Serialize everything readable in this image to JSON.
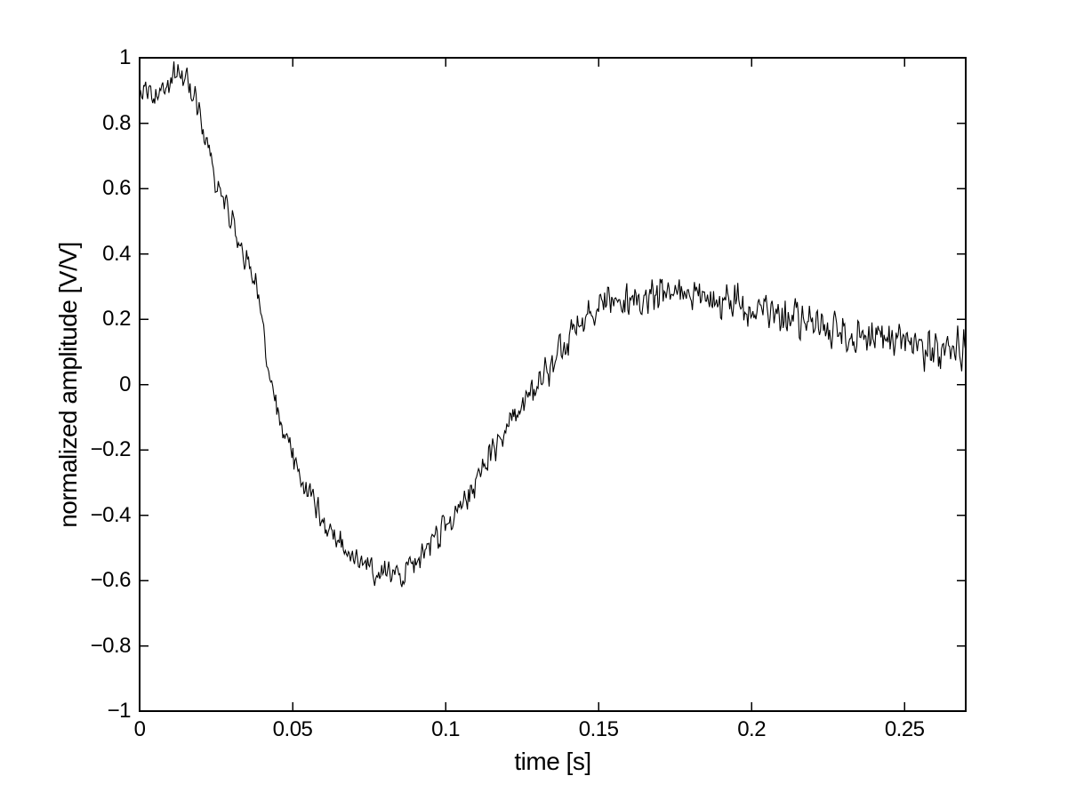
{
  "figure": {
    "background_color": "#ffffff",
    "title": ""
  },
  "chart_data": {
    "type": "line",
    "title": "",
    "xlabel": "time [s]",
    "ylabel": "normalized amplitude [V/V]",
    "xlim": [
      0,
      0.27
    ],
    "ylim": [
      -1,
      1
    ],
    "xticks": [
      0,
      0.05,
      0.1,
      0.15,
      0.2,
      0.25
    ],
    "xtick_labels": [
      "0",
      "0.05",
      "0.1",
      "0.15",
      "0.2",
      "0.25"
    ],
    "yticks": [
      1,
      0.8,
      0.6,
      0.4,
      0.2,
      0,
      -0.2,
      -0.4,
      -0.6,
      -0.8,
      -1
    ],
    "ytick_labels": [
      "1",
      "0.8",
      "0.6",
      "0.4",
      "0.2",
      "0",
      "−0.2",
      "−0.4",
      "−0.6",
      "−0.8",
      "−1"
    ],
    "grid": false,
    "legend": null,
    "box": true,
    "line_color": "#000000",
    "axis_color": "#000000",
    "series": [
      {
        "name": "normalized amplitude",
        "style": "solid",
        "trend": {
          "t": [
            0,
            0.005,
            0.008,
            0.01,
            0.012,
            0.014,
            0.016,
            0.018,
            0.02,
            0.022,
            0.025,
            0.028,
            0.03,
            0.032,
            0.035,
            0.038,
            0.04,
            0.042,
            0.0445,
            0.047,
            0.05,
            0.053,
            0.056,
            0.059,
            0.062,
            0.065,
            0.068,
            0.071,
            0.074,
            0.077,
            0.08,
            0.083,
            0.086,
            0.089,
            0.092,
            0.095,
            0.098,
            0.101,
            0.104,
            0.108,
            0.112,
            0.115,
            0.119,
            0.123,
            0.127,
            0.131,
            0.134,
            0.138,
            0.143,
            0.148,
            0.153,
            0.158,
            0.163,
            0.168,
            0.172,
            0.177,
            0.182,
            0.187,
            0.192,
            0.196,
            0.201,
            0.206,
            0.211,
            0.216,
            0.221,
            0.226,
            0.23,
            0.235,
            0.24,
            0.245,
            0.25,
            0.255,
            0.26,
            0.265,
            0.27
          ],
          "v": [
            0.88,
            0.89,
            0.9,
            0.93,
            0.965,
            0.92,
            0.92,
            0.88,
            0.82,
            0.72,
            0.62,
            0.55,
            0.5,
            0.455,
            0.385,
            0.32,
            0.19,
            0.05,
            -0.07,
            -0.15,
            -0.22,
            -0.29,
            -0.35,
            -0.4,
            -0.44,
            -0.48,
            -0.515,
            -0.54,
            -0.565,
            -0.58,
            -0.59,
            -0.585,
            -0.575,
            -0.555,
            -0.53,
            -0.49,
            -0.455,
            -0.425,
            -0.39,
            -0.33,
            -0.26,
            -0.21,
            -0.15,
            -0.095,
            -0.04,
            0.015,
            0.055,
            0.105,
            0.175,
            0.225,
            0.25,
            0.26,
            0.27,
            0.272,
            0.275,
            0.275,
            0.27,
            0.263,
            0.255,
            0.246,
            0.24,
            0.226,
            0.215,
            0.2,
            0.19,
            0.176,
            0.162,
            0.15,
            0.14,
            0.135,
            0.125,
            0.115,
            0.11,
            0.105,
            0.11
          ]
        },
        "noise": {
          "model": "white noise, amplitude grows with time",
          "base_amplitude": 0.035,
          "amplitude_slope": 0.09,
          "seed": 12345,
          "samples": 820
        },
        "clamp_max": 1.0
      }
    ]
  }
}
